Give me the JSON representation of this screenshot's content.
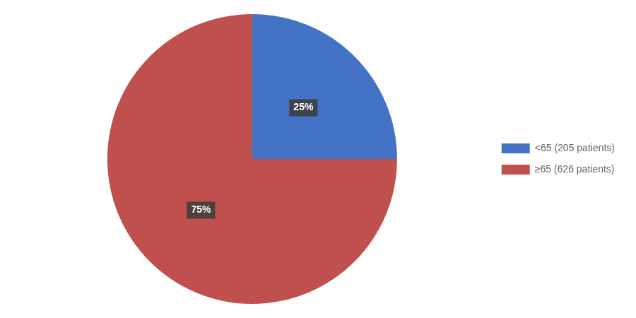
{
  "chart_data": {
    "type": "pie",
    "categories": [
      "<65 (205 patients)",
      "≥65 (626 patients)"
    ],
    "values": [
      25,
      75
    ],
    "value_labels": [
      "25%",
      "75%"
    ],
    "colors": [
      "#4472C4",
      "#C0504D"
    ],
    "data_labels": true,
    "legend": "right"
  }
}
